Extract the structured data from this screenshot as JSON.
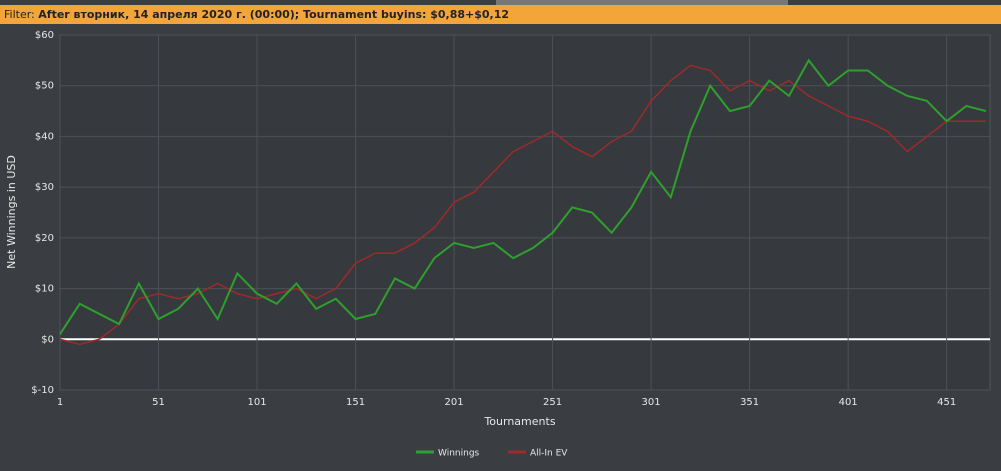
{
  "filter_label": "Filter:",
  "filter_text": "After вторник, 14 апреля 2020 г. (00:00); Tournament buyins: $0,88+$0,12",
  "chart_data": {
    "type": "line",
    "xlabel": "Tournaments",
    "ylabel": "Net Winnings in USD",
    "x": [
      1,
      11,
      21,
      31,
      41,
      51,
      61,
      71,
      81,
      91,
      101,
      111,
      121,
      131,
      141,
      151,
      161,
      171,
      181,
      191,
      201,
      211,
      221,
      231,
      241,
      251,
      261,
      271,
      281,
      291,
      301,
      311,
      321,
      331,
      341,
      351,
      361,
      371,
      381,
      391,
      401,
      411,
      421,
      431,
      441,
      451,
      461,
      471
    ],
    "series": [
      {
        "name": "Winnings",
        "color": "#2ea02e",
        "values": [
          1,
          7,
          5,
          3,
          11,
          4,
          6,
          10,
          4,
          13,
          9,
          7,
          11,
          6,
          8,
          4,
          5,
          12,
          10,
          16,
          19,
          18,
          19,
          16,
          18,
          21,
          26,
          25,
          21,
          26,
          33,
          28,
          41,
          50,
          45,
          46,
          51,
          48,
          55,
          50,
          53,
          53,
          50,
          48,
          47,
          43,
          46,
          45
        ]
      },
      {
        "name": "All-In EV",
        "color": "#9e2a2a",
        "values": [
          0,
          -1,
          0,
          3,
          8,
          9,
          8,
          9,
          11,
          9,
          8,
          9,
          10,
          8,
          10,
          15,
          17,
          17,
          19,
          22,
          27,
          29,
          33,
          37,
          39,
          41,
          38,
          36,
          39,
          41,
          47,
          51,
          54,
          53,
          49,
          51,
          49,
          51,
          48,
          46,
          44,
          43,
          41,
          37,
          40,
          43,
          43,
          43
        ]
      }
    ],
    "xlim": [
      1,
      473
    ],
    "xticks": [
      1,
      51,
      101,
      151,
      201,
      251,
      301,
      351,
      401,
      451
    ],
    "ylim": [
      -10,
      60
    ],
    "yticks": [
      {
        "value": -10,
        "label": "$-10"
      },
      {
        "value": 0,
        "label": "$0"
      },
      {
        "value": 10,
        "label": "$10"
      },
      {
        "value": 20,
        "label": "$20"
      },
      {
        "value": 30,
        "label": "$30"
      },
      {
        "value": 40,
        "label": "$40"
      },
      {
        "value": 50,
        "label": "$50"
      },
      {
        "value": 60,
        "label": "$60"
      }
    ],
    "grid": true
  }
}
